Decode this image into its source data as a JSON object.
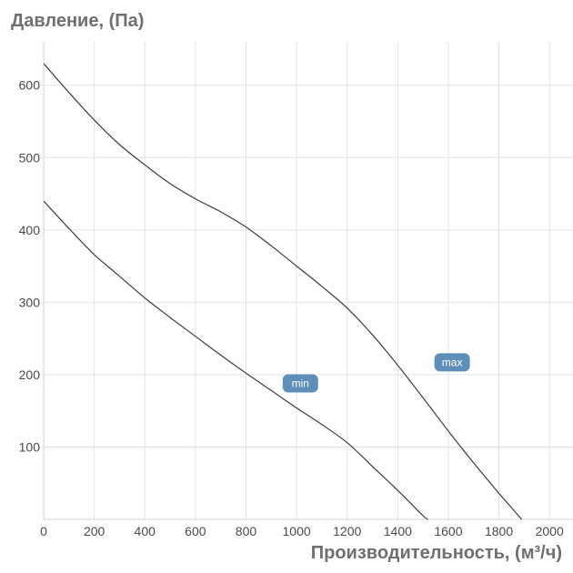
{
  "chart_data": {
    "type": "line",
    "xlabel": "Производительность, (м³/ч)",
    "ylabel": "Давление, (Па)",
    "xlim": [
      0,
      2100
    ],
    "ylim": [
      0,
      660
    ],
    "xticks": [
      0,
      200,
      400,
      600,
      800,
      1000,
      1200,
      1400,
      1600,
      1800,
      2000
    ],
    "yticks": [
      100,
      200,
      300,
      400,
      500,
      600
    ],
    "grid": true,
    "line_color": "#3d3d3d",
    "grid_color": "#dfe3e8",
    "badge_color": "#5e8fb8",
    "series": [
      {
        "name": "max",
        "points": [
          [
            0,
            630
          ],
          [
            100,
            590
          ],
          [
            200,
            552
          ],
          [
            300,
            518
          ],
          [
            400,
            490
          ],
          [
            500,
            464
          ],
          [
            600,
            443
          ],
          [
            700,
            425
          ],
          [
            800,
            404
          ],
          [
            900,
            378
          ],
          [
            1000,
            350
          ],
          [
            1100,
            322
          ],
          [
            1200,
            292
          ],
          [
            1300,
            255
          ],
          [
            1400,
            213
          ],
          [
            1500,
            168
          ],
          [
            1600,
            122
          ],
          [
            1700,
            78
          ],
          [
            1800,
            36
          ],
          [
            1890,
            0
          ]
        ]
      },
      {
        "name": "min",
        "points": [
          [
            0,
            440
          ],
          [
            100,
            402
          ],
          [
            200,
            366
          ],
          [
            300,
            336
          ],
          [
            400,
            306
          ],
          [
            500,
            279
          ],
          [
            600,
            253
          ],
          [
            700,
            227
          ],
          [
            800,
            202
          ],
          [
            900,
            178
          ],
          [
            1000,
            154
          ],
          [
            1100,
            131
          ],
          [
            1200,
            106
          ],
          [
            1300,
            73
          ],
          [
            1400,
            40
          ],
          [
            1500,
            5
          ],
          [
            1520,
            0
          ]
        ]
      }
    ],
    "annotations": [
      {
        "text": "min",
        "x": 1015,
        "y": 188
      },
      {
        "text": "max",
        "x": 1615,
        "y": 217
      }
    ]
  }
}
